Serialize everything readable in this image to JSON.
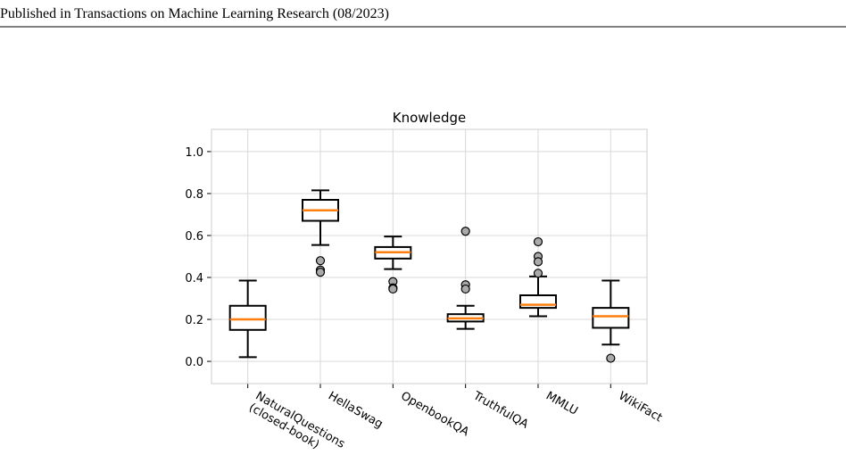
{
  "header": {
    "text": "Published in Transactions on Machine Learning Research (08/2023)"
  },
  "chart_data": {
    "type": "box",
    "title": "Knowledge",
    "categories": [
      "NaturalQuestions\n(closed-book)",
      "HellaSwag",
      "OpenbookQA",
      "TruthfulQA",
      "MMLU",
      "WikiFact"
    ],
    "boxes": [
      {
        "whislo": 0.02,
        "q1": 0.15,
        "med": 0.2,
        "q3": 0.265,
        "whishi": 0.385,
        "fliers": []
      },
      {
        "whislo": 0.555,
        "q1": 0.67,
        "med": 0.72,
        "q3": 0.77,
        "whishi": 0.815,
        "fliers": [
          0.48,
          0.435,
          0.425
        ]
      },
      {
        "whislo": 0.44,
        "q1": 0.49,
        "med": 0.52,
        "q3": 0.545,
        "whishi": 0.595,
        "fliers": [
          0.38,
          0.35,
          0.345
        ]
      },
      {
        "whislo": 0.155,
        "q1": 0.19,
        "med": 0.205,
        "q3": 0.225,
        "whishi": 0.265,
        "fliers": [
          0.62,
          0.365,
          0.345
        ]
      },
      {
        "whislo": 0.215,
        "q1": 0.255,
        "med": 0.27,
        "q3": 0.315,
        "whishi": 0.405,
        "fliers": [
          0.57,
          0.5,
          0.475,
          0.42
        ]
      },
      {
        "whislo": 0.08,
        "q1": 0.16,
        "med": 0.215,
        "q3": 0.255,
        "whishi": 0.385,
        "fliers": [
          0.015
        ]
      }
    ],
    "box_color": "#000000",
    "median_color": "#ff7f0e",
    "flier_color": "#aaaaaa",
    "ylim": [
      -0.106,
      1.106
    ],
    "yticks": [
      {
        "value": 0,
        "label": "0.0"
      },
      {
        "value": 0.2,
        "label": "0.2"
      },
      {
        "value": 0.4,
        "label": "0.4"
      },
      {
        "value": 0.6,
        "label": "0.6"
      },
      {
        "value": 0.8,
        "label": "0.8"
      },
      {
        "value": 1,
        "label": "1.0"
      }
    ],
    "grid": true
  }
}
